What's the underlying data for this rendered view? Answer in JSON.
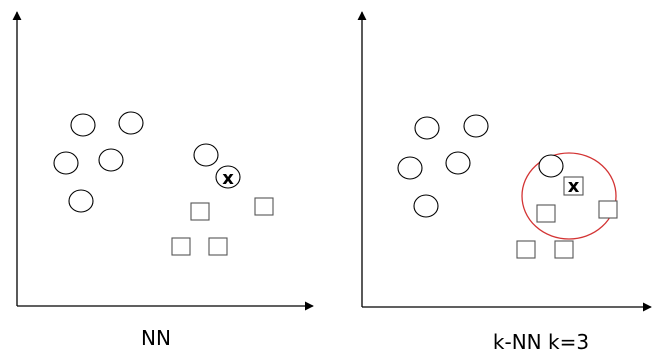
{
  "colors": {
    "circle_stroke": "#000000",
    "square_stroke": "#555555",
    "neighborhood_ring": "#d33434"
  },
  "panels": [
    {
      "caption": "NN",
      "query_label": "x",
      "query_marker": "circle"
    },
    {
      "caption": "k-NN k=3",
      "query_label": "x",
      "query_marker": "square",
      "neighborhood": "ellipse"
    }
  ]
}
